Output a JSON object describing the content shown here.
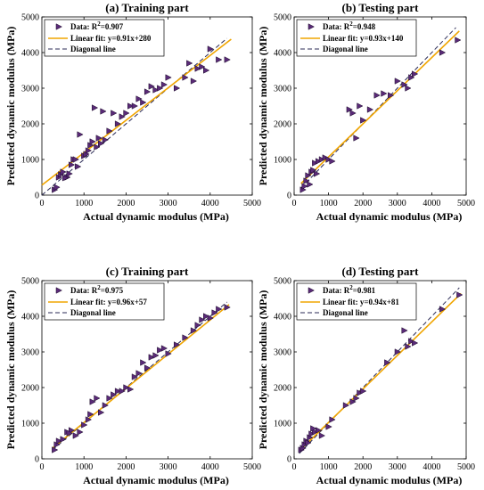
{
  "style": {
    "marker_fill": "#5a2a78",
    "fit_color": "#f0a500",
    "diag_color": "#2a2a55"
  },
  "chart_data": [
    {
      "type": "scatter",
      "title": "(a) Training part",
      "xlabel": "Actual dynamic modulus (MPa)",
      "ylabel": "Predicted dynamic modulus (MPa)",
      "xlim": [
        0,
        5000
      ],
      "ylim": [
        0,
        5000
      ],
      "xticks": [
        "0",
        "1000",
        "2000",
        "3000",
        "4000",
        "5000"
      ],
      "yticks": [
        "0",
        "1000",
        "2000",
        "3000",
        "4000",
        "5000"
      ],
      "legend_position": "top-left",
      "legend": {
        "data_prefix": "Data: R",
        "data_sup": "2",
        "data_suffix": "=0.907",
        "fit": "Linear fit: y=0.91x+280",
        "diag": "Diagonal line"
      },
      "fit": {
        "slope": 0.91,
        "intercept": 280,
        "x_range": [
          0,
          4500
        ]
      },
      "diagonal": [
        [
          0,
          0
        ],
        [
          4400,
          4400
        ]
      ],
      "points": [
        [
          300,
          150
        ],
        [
          350,
          220
        ],
        [
          400,
          500
        ],
        [
          450,
          580
        ],
        [
          500,
          650
        ],
        [
          600,
          500
        ],
        [
          700,
          850
        ],
        [
          750,
          1000
        ],
        [
          800,
          1000
        ],
        [
          850,
          800
        ],
        [
          900,
          1700
        ],
        [
          1000,
          1100
        ],
        [
          1050,
          1150
        ],
        [
          1100,
          1250
        ],
        [
          1150,
          1400
        ],
        [
          1200,
          1500
        ],
        [
          1250,
          2450
        ],
        [
          1300,
          1350
        ],
        [
          1350,
          1600
        ],
        [
          1400,
          1450
        ],
        [
          1450,
          2350
        ],
        [
          1500,
          1550
        ],
        [
          1600,
          1800
        ],
        [
          1700,
          2300
        ],
        [
          1800,
          2000
        ],
        [
          1900,
          2200
        ],
        [
          2000,
          2300
        ],
        [
          2100,
          2500
        ],
        [
          2200,
          2500
        ],
        [
          2300,
          2700
        ],
        [
          2400,
          2600
        ],
        [
          2500,
          2900
        ],
        [
          2600,
          3050
        ],
        [
          2700,
          2950
        ],
        [
          2800,
          3000
        ],
        [
          2900,
          3100
        ],
        [
          3000,
          3300
        ],
        [
          3200,
          3000
        ],
        [
          3400,
          3300
        ],
        [
          3500,
          3700
        ],
        [
          3600,
          3200
        ],
        [
          3700,
          3550
        ],
        [
          3800,
          3600
        ],
        [
          3900,
          3500
        ],
        [
          4000,
          4100
        ],
        [
          4200,
          3800
        ],
        [
          4400,
          3800
        ],
        [
          650,
          600
        ],
        [
          550,
          480
        ]
      ]
    },
    {
      "type": "scatter",
      "title": "(b) Testing part",
      "xlabel": "Actual dynamic modulus (MPa)",
      "ylabel": "Predicted dynamic modulus (MPa)",
      "xlim": [
        0,
        5000
      ],
      "ylim": [
        0,
        5000
      ],
      "xticks": [
        "0",
        "1000",
        "2000",
        "3000",
        "4000",
        "5000"
      ],
      "yticks": [
        "0",
        "1000",
        "2000",
        "3000",
        "4000",
        "5000"
      ],
      "legend_position": "top-left",
      "legend": {
        "data_prefix": "Data: R",
        "data_sup": "2",
        "data_suffix": "=0.948",
        "fit": "Linear fit: y=0.93x+140",
        "diag": "Diagonal line"
      },
      "fit": {
        "slope": 0.93,
        "intercept": 140,
        "x_range": [
          200,
          4800
        ]
      },
      "diagonal": [
        [
          200,
          200
        ],
        [
          4700,
          4700
        ]
      ],
      "points": [
        [
          250,
          150
        ],
        [
          300,
          250
        ],
        [
          350,
          400
        ],
        [
          400,
          550
        ],
        [
          450,
          300
        ],
        [
          500,
          650
        ],
        [
          550,
          700
        ],
        [
          600,
          900
        ],
        [
          650,
          600
        ],
        [
          700,
          950
        ],
        [
          800,
          1000
        ],
        [
          900,
          1050
        ],
        [
          1000,
          1000
        ],
        [
          1100,
          950
        ],
        [
          1600,
          2400
        ],
        [
          1700,
          2300
        ],
        [
          1800,
          1600
        ],
        [
          1900,
          2500
        ],
        [
          2000,
          2100
        ],
        [
          2200,
          2400
        ],
        [
          2400,
          2800
        ],
        [
          2600,
          2850
        ],
        [
          2800,
          2800
        ],
        [
          3000,
          3200
        ],
        [
          3200,
          3100
        ],
        [
          3300,
          3000
        ],
        [
          3400,
          3300
        ],
        [
          3500,
          3400
        ],
        [
          4300,
          4000
        ],
        [
          4750,
          4350
        ]
      ]
    },
    {
      "type": "scatter",
      "title": "(c) Training part",
      "xlabel": "Actual dynamic modulus (MPa)",
      "ylabel": "Predicted dynamic modulus (MPa)",
      "xlim": [
        0,
        5000
      ],
      "ylim": [
        0,
        5000
      ],
      "xticks": [
        "0",
        "1000",
        "2000",
        "3000",
        "4000",
        "5000"
      ],
      "yticks": [
        "0",
        "1000",
        "2000",
        "3000",
        "4000",
        "5000"
      ],
      "legend_position": "top-left",
      "legend": {
        "data_prefix": "Data: R",
        "data_sup": "2",
        "data_suffix": "=0.975",
        "fit": "Linear fit: y=0.96x+57",
        "diag": "Diagonal line"
      },
      "fit": {
        "slope": 0.96,
        "intercept": 57,
        "x_range": [
          250,
          4450
        ]
      },
      "diagonal": [
        [
          250,
          250
        ],
        [
          4400,
          4400
        ]
      ],
      "points": [
        [
          300,
          250
        ],
        [
          350,
          400
        ],
        [
          400,
          500
        ],
        [
          500,
          550
        ],
        [
          600,
          750
        ],
        [
          700,
          800
        ],
        [
          800,
          650
        ],
        [
          900,
          750
        ],
        [
          1000,
          950
        ],
        [
          1100,
          1100
        ],
        [
          1200,
          1600
        ],
        [
          1300,
          1700
        ],
        [
          1400,
          1300
        ],
        [
          1500,
          1500
        ],
        [
          1600,
          1700
        ],
        [
          1700,
          1800
        ],
        [
          1800,
          1900
        ],
        [
          1900,
          1900
        ],
        [
          2000,
          2000
        ],
        [
          2100,
          1950
        ],
        [
          2200,
          2300
        ],
        [
          2300,
          2400
        ],
        [
          2400,
          2700
        ],
        [
          2500,
          2550
        ],
        [
          2600,
          2850
        ],
        [
          2700,
          2900
        ],
        [
          2800,
          3050
        ],
        [
          2900,
          3100
        ],
        [
          3000,
          2950
        ],
        [
          3200,
          3200
        ],
        [
          3400,
          3400
        ],
        [
          3600,
          3600
        ],
        [
          3700,
          3750
        ],
        [
          3800,
          3900
        ],
        [
          3900,
          4000
        ],
        [
          4000,
          3950
        ],
        [
          4100,
          4100
        ],
        [
          4200,
          4200
        ],
        [
          4400,
          4250
        ],
        [
          650,
          720
        ],
        [
          1150,
          1250
        ]
      ]
    },
    {
      "type": "scatter",
      "title": "(d) Testing part",
      "xlabel": "Actual dynamic modulus (MPa)",
      "ylabel": "Predicted dynamic modulus (MPa)",
      "xlim": [
        0,
        5000
      ],
      "ylim": [
        0,
        5000
      ],
      "xticks": [
        "0",
        "1000",
        "2000",
        "3000",
        "4000",
        "5000"
      ],
      "yticks": [
        "0",
        "1000",
        "2000",
        "3000",
        "4000",
        "5000"
      ],
      "legend_position": "top-left",
      "legend": {
        "data_prefix": "Data: R",
        "data_sup": "2",
        "data_suffix": "=0.981",
        "fit": "Linear fit: y=0.94x+81",
        "diag": "Diagonal line"
      },
      "fit": {
        "slope": 0.94,
        "intercept": 81,
        "x_range": [
          150,
          4850
        ]
      },
      "diagonal": [
        [
          150,
          150
        ],
        [
          4800,
          4800
        ]
      ],
      "points": [
        [
          200,
          250
        ],
        [
          250,
          300
        ],
        [
          300,
          400
        ],
        [
          350,
          500
        ],
        [
          400,
          450
        ],
        [
          450,
          600
        ],
        [
          500,
          700
        ],
        [
          600,
          750
        ],
        [
          700,
          800
        ],
        [
          800,
          650
        ],
        [
          1000,
          900
        ],
        [
          1100,
          1100
        ],
        [
          1500,
          1500
        ],
        [
          1700,
          1600
        ],
        [
          1800,
          1700
        ],
        [
          1900,
          1850
        ],
        [
          2000,
          1900
        ],
        [
          2700,
          2700
        ],
        [
          3000,
          3000
        ],
        [
          3200,
          3600
        ],
        [
          3300,
          3150
        ],
        [
          3400,
          3300
        ],
        [
          3500,
          3250
        ],
        [
          4300,
          4200
        ],
        [
          4800,
          4600
        ],
        [
          550,
          850
        ]
      ]
    }
  ]
}
